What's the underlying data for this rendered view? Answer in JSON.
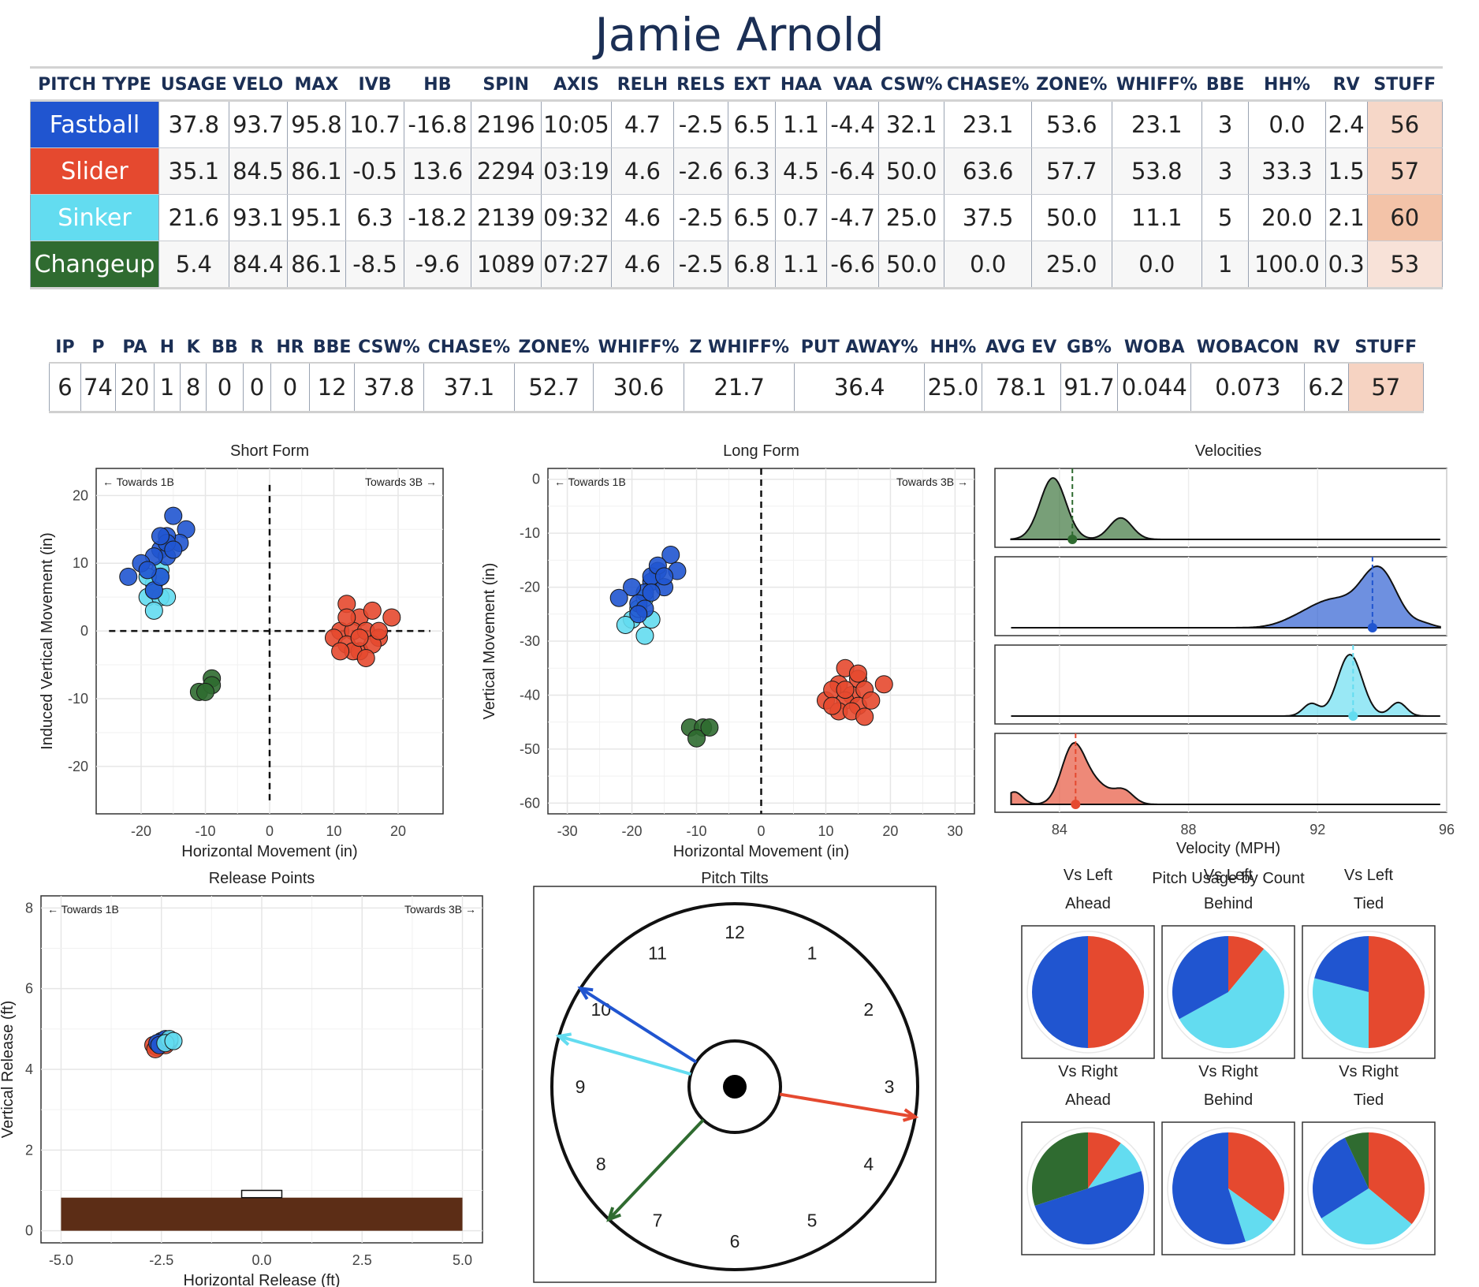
{
  "title": "Jamie Arnold",
  "colors": {
    "Fastball": "#2055d0",
    "Slider": "#e5492f",
    "Sinker": "#63dcf0",
    "Changeup": "#2f6b30",
    "header": "#1b2f55",
    "ground": "#5c2d16"
  },
  "pitch_table": {
    "headers": [
      "PITCH TYPE",
      "USAGE",
      "VELO",
      "MAX",
      "IVB",
      "HB",
      "SPIN",
      "AXIS",
      "RELH",
      "RELS",
      "EXT",
      "HAA",
      "VAA",
      "CSW%",
      "CHASE%",
      "ZONE%",
      "WHIFF%",
      "BBE",
      "HH%",
      "RV",
      "STUFF"
    ],
    "rows": [
      {
        "cells": [
          "Fastball",
          "37.8",
          "93.7",
          "95.8",
          "10.7",
          "-16.8",
          "2196",
          "10:05",
          "4.7",
          "-2.5",
          "6.5",
          "1.1",
          "-4.4",
          "32.1",
          "23.1",
          "53.6",
          "23.1",
          "3",
          "0.0",
          "2.4",
          "56"
        ],
        "color": "#2055d0",
        "stuff_color": "#f6d7c8"
      },
      {
        "cells": [
          "Slider",
          "35.1",
          "84.5",
          "86.1",
          "-0.5",
          "13.6",
          "2294",
          "03:19",
          "4.6",
          "-2.6",
          "6.3",
          "4.5",
          "-6.4",
          "50.0",
          "63.6",
          "57.7",
          "53.8",
          "3",
          "33.3",
          "1.5",
          "57"
        ],
        "color": "#e5492f",
        "stuff_color": "#f6d3c2"
      },
      {
        "cells": [
          "Sinker",
          "21.6",
          "93.1",
          "95.1",
          "6.3",
          "-18.2",
          "2139",
          "09:32",
          "4.6",
          "-2.5",
          "6.5",
          "0.7",
          "-4.7",
          "25.0",
          "37.5",
          "50.0",
          "11.1",
          "5",
          "20.0",
          "2.1",
          "60"
        ],
        "color": "#63dcf0",
        "stuff_color": "#f3c3a8"
      },
      {
        "cells": [
          "Changeup",
          "5.4",
          "84.4",
          "86.1",
          "-8.5",
          "-9.6",
          "1089",
          "07:27",
          "4.6",
          "-2.5",
          "6.8",
          "1.1",
          "-6.6",
          "50.0",
          "0.0",
          "25.0",
          "0.0",
          "1",
          "100.0",
          "0.3",
          "53"
        ],
        "color": "#2f6b30",
        "stuff_color": "#f8e2d8"
      }
    ]
  },
  "summary_table": {
    "headers": [
      "IP",
      "P",
      "PA",
      "H",
      "K",
      "BB",
      "R",
      "HR",
      "BBE",
      "CSW%",
      "CHASE%",
      "ZONE%",
      "WHIFF%",
      "Z WHIFF%",
      "PUT AWAY%",
      "HH%",
      "AVG EV",
      "GB%",
      "WOBA",
      "WOBACON",
      "RV",
      "STUFF"
    ],
    "values": [
      "6",
      "74",
      "20",
      "1",
      "8",
      "0",
      "0",
      "0",
      "12",
      "37.8",
      "37.1",
      "52.7",
      "30.6",
      "21.7",
      "36.4",
      "25.0",
      "78.1",
      "91.7",
      "0.044",
      "0.073",
      "6.2",
      "57"
    ],
    "stuff_color": "#f6d3c2"
  },
  "chart_data": [
    {
      "type": "scatter",
      "title": "Short Form",
      "xlabel": "Horizontal Movement (in)",
      "ylabel": "Induced Vertical Movement (in)",
      "xlim": [
        -27,
        27
      ],
      "ylim": [
        -27,
        24
      ],
      "xticks": [
        -20,
        -10,
        0,
        10,
        20
      ],
      "yticks": [
        -20,
        -10,
        0,
        10,
        20
      ],
      "annotations": [
        "← Towards 1B",
        "Towards 3B →"
      ],
      "series": [
        {
          "name": "Sinker",
          "points": [
            [
              -17,
              9
            ],
            [
              -18,
              7
            ],
            [
              -19,
              5
            ],
            [
              -17,
              5
            ],
            [
              -18,
              3
            ],
            [
              -16,
              5
            ],
            [
              -18,
              6
            ],
            [
              -17,
              8
            ],
            [
              -19,
              8
            ]
          ]
        },
        {
          "name": "Fastball",
          "points": [
            [
              -15,
              17
            ],
            [
              -13,
              15
            ],
            [
              -14,
              13
            ],
            [
              -16,
              14
            ],
            [
              -17,
              12
            ],
            [
              -16,
              11
            ],
            [
              -18,
              11
            ],
            [
              -22,
              8
            ],
            [
              -20,
              10
            ],
            [
              -18,
              6
            ],
            [
              -17,
              8
            ],
            [
              -16,
              13
            ],
            [
              -19,
              9
            ],
            [
              -17,
              14
            ],
            [
              -15,
              12
            ]
          ]
        },
        {
          "name": "Slider",
          "points": [
            [
              12,
              4
            ],
            [
              14,
              2
            ],
            [
              16,
              3
            ],
            [
              19,
              2
            ],
            [
              11,
              0
            ],
            [
              13,
              0
            ],
            [
              15,
              0
            ],
            [
              17,
              -1
            ],
            [
              10,
              -1
            ],
            [
              12,
              -2
            ],
            [
              14,
              -3
            ],
            [
              16,
              -2
            ],
            [
              13,
              -3
            ],
            [
              15,
              -4
            ],
            [
              11,
              -3
            ],
            [
              14,
              -1
            ],
            [
              17,
              0
            ],
            [
              12,
              2
            ]
          ]
        },
        {
          "name": "Changeup",
          "points": [
            [
              -11,
              -9
            ],
            [
              -9,
              -7
            ],
            [
              -9,
              -8
            ],
            [
              -10,
              -9
            ]
          ]
        }
      ]
    },
    {
      "type": "scatter",
      "title": "Long Form",
      "xlabel": "Horizontal Movement (in)",
      "ylabel": "Vertical Movement (in)",
      "xlim": [
        -33,
        33
      ],
      "ylim": [
        -62,
        2
      ],
      "xticks": [
        -30,
        -20,
        -10,
        0,
        10,
        20,
        30
      ],
      "yticks": [
        0,
        -10,
        -20,
        -30,
        -40,
        -50,
        -60
      ],
      "annotations": [
        "← Towards 1B",
        "Towards 3B →"
      ],
      "series": [
        {
          "name": "Sinker",
          "points": [
            [
              -20,
              -26
            ],
            [
              -19,
              -24
            ],
            [
              -18,
              -29
            ],
            [
              -17,
              -26
            ],
            [
              -18,
              -22
            ],
            [
              -21,
              -27
            ]
          ]
        },
        {
          "name": "Fastball",
          "points": [
            [
              -14,
              -14
            ],
            [
              -16,
              -17
            ],
            [
              -17,
              -19
            ],
            [
              -15,
              -20
            ],
            [
              -13,
              -17
            ],
            [
              -17,
              -18
            ],
            [
              -18,
              -21
            ],
            [
              -20,
              -20
            ],
            [
              -22,
              -22
            ],
            [
              -19,
              -23
            ],
            [
              -18,
              -24
            ],
            [
              -19,
              -25
            ],
            [
              -17,
              -21
            ],
            [
              -16,
              -16
            ],
            [
              -15,
              -18
            ]
          ]
        },
        {
          "name": "Slider",
          "points": [
            [
              13,
              -35
            ],
            [
              15,
              -37
            ],
            [
              12,
              -38
            ],
            [
              14,
              -40
            ],
            [
              16,
              -39
            ],
            [
              19,
              -38
            ],
            [
              10,
              -41
            ],
            [
              11,
              -39
            ],
            [
              13,
              -41
            ],
            [
              15,
              -42
            ],
            [
              12,
              -43
            ],
            [
              14,
              -43
            ],
            [
              16,
              -44
            ],
            [
              11,
              -42
            ],
            [
              17,
              -41
            ],
            [
              13,
              -39
            ],
            [
              15,
              -36
            ]
          ]
        },
        {
          "name": "Changeup",
          "points": [
            [
              -11,
              -46
            ],
            [
              -9,
              -46
            ],
            [
              -10,
              -48
            ],
            [
              -8,
              -46
            ]
          ]
        }
      ]
    },
    {
      "type": "area",
      "title": "Velocities",
      "xlabel": "Velocity (MPH)",
      "xlim": [
        82,
        96
      ],
      "xticks": [
        84,
        88,
        92,
        96
      ],
      "series": [
        {
          "name": "Changeup",
          "mean": 84.4,
          "peaks": [
            [
              83.8,
              1.0,
              0.4
            ],
            [
              85.9,
              0.35,
              0.35
            ]
          ]
        },
        {
          "name": "Fastball",
          "mean": 93.7,
          "peaks": [
            [
              93.9,
              1.0,
              0.55
            ],
            [
              92.5,
              0.45,
              0.7
            ],
            [
              91.4,
              0.12,
              0.6
            ],
            [
              95.3,
              0.06,
              0.3
            ]
          ]
        },
        {
          "name": "Sinker",
          "mean": 93.1,
          "peaks": [
            [
              93.0,
              1.0,
              0.38
            ],
            [
              91.8,
              0.2,
              0.25
            ],
            [
              94.5,
              0.22,
              0.25
            ]
          ]
        },
        {
          "name": "Slider",
          "mean": 84.5,
          "peaks": [
            [
              84.4,
              1.0,
              0.35
            ],
            [
              85.0,
              0.45,
              0.5
            ],
            [
              86.0,
              0.25,
              0.3
            ],
            [
              82.6,
              0.25,
              0.25
            ]
          ]
        }
      ]
    },
    {
      "type": "scatter",
      "title": "Release Points",
      "xlabel": "Horizontal Release (ft)",
      "ylabel": "Vertical Release (ft)",
      "xlim": [
        -5.5,
        5.5
      ],
      "ylim": [
        -0.3,
        8.3
      ],
      "xticks": [
        "-5.0",
        "-2.5",
        "0.0",
        "2.5",
        "5.0"
      ],
      "yticks": [
        0,
        2,
        4,
        6,
        8
      ],
      "annotations": [
        "← Towards 1B",
        "Towards 3B →"
      ],
      "series": [
        {
          "name": "Slider",
          "points": [
            [
              -2.7,
              4.6
            ],
            [
              -2.6,
              4.55
            ],
            [
              -2.5,
              4.65
            ],
            [
              -2.65,
              4.5
            ],
            [
              -2.4,
              4.6
            ]
          ]
        },
        {
          "name": "Fastball",
          "points": [
            [
              -2.5,
              4.7
            ],
            [
              -2.4,
              4.75
            ],
            [
              -2.6,
              4.65
            ],
            [
              -2.3,
              4.7
            ],
            [
              -2.55,
              4.6
            ]
          ]
        },
        {
          "name": "Sinker",
          "points": [
            [
              -2.3,
              4.75
            ],
            [
              -2.4,
              4.65
            ],
            [
              -2.2,
              4.7
            ]
          ]
        }
      ]
    },
    {
      "type": "other",
      "title": "Pitch Tilts",
      "clock_labels": [
        "12",
        "1",
        "2",
        "3",
        "4",
        "5",
        "6",
        "7",
        "8",
        "9",
        "10",
        "11"
      ],
      "tilts": [
        {
          "name": "Fastball",
          "axis": "10:05"
        },
        {
          "name": "Slider",
          "axis": "03:19"
        },
        {
          "name": "Sinker",
          "axis": "09:32"
        },
        {
          "name": "Changeup",
          "axis": "07:27"
        }
      ]
    },
    {
      "type": "pie",
      "title": "Pitch Usage by Count",
      "panels": [
        {
          "label1": "Vs Left",
          "label2": "Ahead",
          "slices": [
            {
              "name": "Slider",
              "value": 0.5
            },
            {
              "name": "Fastball",
              "value": 0.5
            }
          ]
        },
        {
          "label1": "Vs Left",
          "label2": "Behind",
          "slices": [
            {
              "name": "Slider",
              "value": 0.11
            },
            {
              "name": "Sinker",
              "value": 0.56
            },
            {
              "name": "Fastball",
              "value": 0.33
            }
          ]
        },
        {
          "label1": "Vs Left",
          "label2": "Tied",
          "slices": [
            {
              "name": "Slider",
              "value": 0.5
            },
            {
              "name": "Sinker",
              "value": 0.29
            },
            {
              "name": "Fastball",
              "value": 0.21
            }
          ]
        },
        {
          "label1": "Vs Right",
          "label2": "Ahead",
          "slices": [
            {
              "name": "Slider",
              "value": 0.1
            },
            {
              "name": "Sinker",
              "value": 0.1
            },
            {
              "name": "Fastball",
              "value": 0.5
            },
            {
              "name": "Changeup",
              "value": 0.3
            }
          ]
        },
        {
          "label1": "Vs Right",
          "label2": "Behind",
          "slices": [
            {
              "name": "Slider",
              "value": 0.35
            },
            {
              "name": "Sinker",
              "value": 0.1
            },
            {
              "name": "Fastball",
              "value": 0.55
            }
          ]
        },
        {
          "label1": "Vs Right",
          "label2": "Tied",
          "slices": [
            {
              "name": "Slider",
              "value": 0.36
            },
            {
              "name": "Sinker",
              "value": 0.3
            },
            {
              "name": "Fastball",
              "value": 0.27
            },
            {
              "name": "Changeup",
              "value": 0.07
            }
          ]
        }
      ]
    }
  ]
}
